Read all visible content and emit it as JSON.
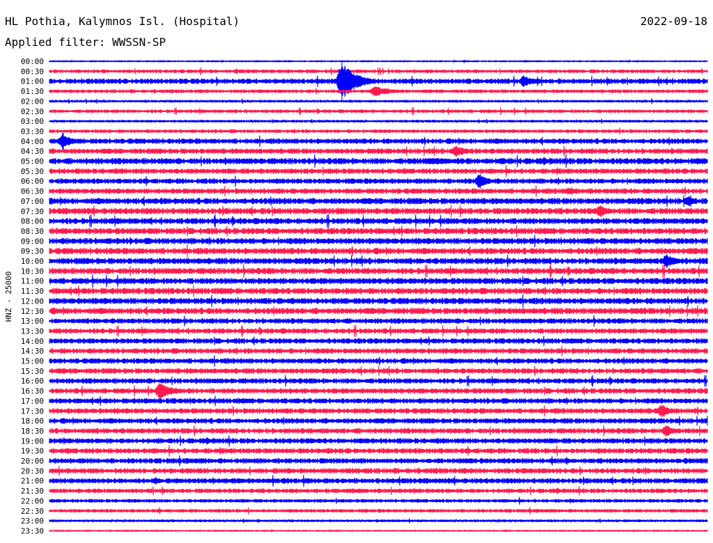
{
  "header": {
    "station": "HL Pothia, Kalymnos Isl. (Hospital)",
    "date": "2022-09-18",
    "filter": "Applied filter: WWSSN-SP"
  },
  "chart_data": {
    "type": "helicorder",
    "ylabel": "HNZ - 25000",
    "colors": [
      "#0000ff",
      "#ff1a4d"
    ],
    "rows": [
      "00:00",
      "00:30",
      "01:00",
      "01:30",
      "02:00",
      "02:30",
      "03:00",
      "03:30",
      "04:00",
      "04:30",
      "05:00",
      "05:30",
      "06:00",
      "06:30",
      "07:00",
      "07:30",
      "08:00",
      "08:30",
      "09:00",
      "09:30",
      "10:00",
      "10:30",
      "11:00",
      "11:30",
      "12:00",
      "12:30",
      "13:00",
      "13:30",
      "14:00",
      "14:30",
      "15:00",
      "15:30",
      "16:00",
      "16:30",
      "17:00",
      "17:30",
      "18:00",
      "18:30",
      "19:00",
      "19:30",
      "20:00",
      "20:30",
      "21:00",
      "21:30",
      "22:00",
      "22:30",
      "23:00",
      "23:30"
    ],
    "noise_level": [
      0.5,
      2,
      3,
      2,
      1.5,
      2,
      1.5,
      2,
      3,
      3,
      3.5,
      3,
      3,
      3,
      3.5,
      3.5,
      3.5,
      3.5,
      3.5,
      3.5,
      3.5,
      3.5,
      3.5,
      3.5,
      3.5,
      3.5,
      3,
      3,
      3,
      3,
      3,
      3,
      3,
      3,
      3,
      3,
      3,
      3,
      3,
      3,
      3,
      3,
      3,
      2.5,
      2,
      2,
      1.5,
      0.5
    ],
    "events": [
      {
        "row": "01:00",
        "minute": 13.3,
        "amplitude": 30,
        "duration_min": 1.5
      },
      {
        "row": "01:00",
        "minute": 21.6,
        "amplitude": 9,
        "duration_min": 1.2
      },
      {
        "row": "01:30",
        "minute": 14.8,
        "amplitude": 8,
        "duration_min": 2
      },
      {
        "row": "04:00",
        "minute": 0.6,
        "amplitude": 13,
        "duration_min": 0.9
      },
      {
        "row": "04:30",
        "minute": 18.5,
        "amplitude": 9,
        "duration_min": 1.2
      },
      {
        "row": "05:00",
        "minute": 17.3,
        "amplitude": 5,
        "duration_min": 4
      },
      {
        "row": "06:00",
        "minute": 19.6,
        "amplitude": 13,
        "duration_min": 0.8
      },
      {
        "row": "06:30",
        "minute": 23.7,
        "amplitude": 6,
        "duration_min": 1.2
      },
      {
        "row": "07:00",
        "minute": 29.1,
        "amplitude": 9,
        "duration_min": 0.8
      },
      {
        "row": "07:30",
        "minute": 25.1,
        "amplitude": 10,
        "duration_min": 0.9
      },
      {
        "row": "10:00",
        "minute": 28.1,
        "amplitude": 11,
        "duration_min": 1.1
      },
      {
        "row": "16:30",
        "minute": 5.0,
        "amplitude": 12,
        "duration_min": 1.6
      },
      {
        "row": "17:30",
        "minute": 27.9,
        "amplitude": 11,
        "duration_min": 0.8
      },
      {
        "row": "18:30",
        "minute": 28.1,
        "amplitude": 9,
        "duration_min": 1
      }
    ]
  }
}
